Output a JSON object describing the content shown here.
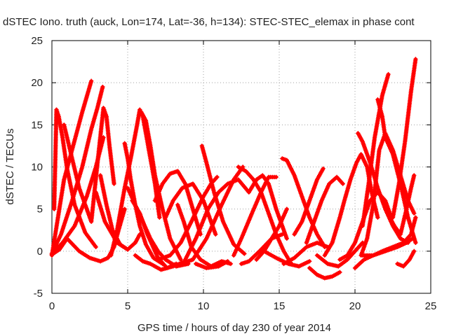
{
  "chart_data": {
    "type": "scatter",
    "title": "dSTEC Iono. truth (auck, Lon=174, Lat=-36, h=134): STEC-STEC_elemax in phase cont",
    "xlabel": "GPS time / hours of day 230 of year 2014",
    "ylabel": "dSTEC  / TECUs",
    "xlim": [
      0,
      25
    ],
    "ylim": [
      -5,
      25
    ],
    "xticks": [
      0,
      5,
      10,
      15,
      20,
      25
    ],
    "yticks": [
      -5,
      0,
      5,
      10,
      15,
      20,
      25
    ],
    "grid": true,
    "marker": "plus",
    "color": "#ff0000",
    "series": [
      {
        "x": [
          0.0,
          0.4,
          0.8,
          1.4,
          2.0,
          2.6
        ],
        "y": [
          -0.5,
          4.0,
          8.5,
          12.5,
          16.5,
          20.2
        ]
      },
      {
        "x": [
          0.15,
          0.3,
          0.45,
          0.7,
          1.0,
          1.5,
          2.2,
          2.9
        ],
        "y": [
          5.0,
          16.8,
          16.0,
          13.5,
          9.8,
          5.5,
          2.2,
          0.5
        ]
      },
      {
        "x": [
          0.0,
          0.6,
          1.3,
          2.0,
          2.6,
          3.0,
          3.35
        ],
        "y": [
          -0.3,
          2.0,
          5.8,
          10.0,
          14.5,
          17.0,
          19.5
        ]
      },
      {
        "x": [
          0.8,
          1.2,
          1.8,
          2.6,
          3.1,
          3.4,
          3.6,
          3.8,
          4.1
        ],
        "y": [
          15.0,
          12.0,
          7.5,
          3.5,
          12.0,
          17.0,
          16.0,
          12.5,
          8.0
        ]
      },
      {
        "x": [
          0.0,
          0.7,
          1.5,
          2.3,
          2.9,
          3.4
        ],
        "y": [
          -0.3,
          1.0,
          3.0,
          6.5,
          10.0,
          13.5
        ]
      },
      {
        "x": [
          0.0,
          0.5,
          1.0,
          1.8,
          2.5,
          3.2,
          3.7,
          4.1,
          4.4,
          4.8
        ],
        "y": [
          -0.4,
          0.2,
          1.5,
          0.0,
          -0.8,
          -1.2,
          -0.8,
          0.5,
          2.5,
          5.0
        ]
      },
      {
        "x": [
          2.9,
          3.5,
          4.3,
          5.0,
          5.5,
          5.8
        ],
        "y": [
          7.0,
          3.5,
          1.0,
          0.2,
          1.0,
          2.0
        ]
      },
      {
        "x": [
          3.2,
          3.6,
          4.0,
          4.5,
          5.0
        ],
        "y": [
          9.0,
          5.5,
          2.5,
          0.8,
          0.2
        ]
      },
      {
        "x": [
          4.8,
          5.0,
          5.2,
          5.5,
          5.8,
          6.2,
          6.7,
          7.3
        ],
        "y": [
          12.8,
          11.0,
          8.5,
          5.5,
          3.0,
          0.8,
          -0.8,
          -1.5
        ]
      },
      {
        "x": [
          3.9,
          4.3,
          4.8,
          5.2,
          5.6,
          5.8,
          6.0,
          6.2,
          6.5,
          6.8,
          7.1
        ],
        "y": [
          -0.5,
          2.5,
          7.5,
          11.0,
          14.8,
          16.8,
          16.0,
          14.0,
          11.0,
          8.0,
          4.0
        ]
      },
      {
        "x": [
          5.3,
          5.8,
          6.3,
          7.0,
          7.6,
          8.2
        ],
        "y": [
          6.0,
          4.5,
          2.0,
          -0.8,
          -2.0,
          -1.5
        ]
      },
      {
        "x": [
          5.9,
          6.2,
          6.5,
          6.8,
          7.3,
          7.8,
          8.5
        ],
        "y": [
          16.5,
          15.5,
          12.5,
          9.0,
          5.0,
          1.5,
          -1.0
        ]
      },
      {
        "x": [
          5.0,
          5.5,
          6.0,
          6.5,
          7.0,
          7.5,
          8.2,
          9.0
        ],
        "y": [
          7.5,
          5.5,
          3.5,
          1.5,
          0.0,
          -1.0,
          -1.8,
          -1.5
        ]
      },
      {
        "x": [
          5.5,
          6.0,
          6.5,
          7.2,
          8.0,
          8.8
        ],
        "y": [
          -0.5,
          -1.2,
          -1.5,
          -2.2,
          -1.8,
          -1.2
        ]
      },
      {
        "x": [
          6.8,
          7.3,
          7.8,
          8.3,
          8.8,
          9.3,
          9.8
        ],
        "y": [
          6.0,
          8.0,
          9.2,
          9.5,
          8.0,
          5.0,
          2.0
        ]
      },
      {
        "x": [
          7.5,
          8.0,
          8.6,
          9.3,
          10.0,
          10.8
        ],
        "y": [
          4.0,
          6.0,
          7.5,
          8.0,
          6.0,
          2.0
        ]
      },
      {
        "x": [
          7.0,
          7.8,
          8.5,
          9.2,
          10.0,
          10.5,
          10.9
        ],
        "y": [
          -1.0,
          -0.5,
          1.0,
          3.5,
          6.5,
          8.0,
          8.8
        ]
      },
      {
        "x": [
          8.3,
          8.7,
          9.2,
          9.8,
          10.5,
          11.2,
          11.8
        ],
        "y": [
          5.5,
          3.5,
          0.5,
          -1.0,
          -1.8,
          -1.2,
          -1.5
        ]
      },
      {
        "x": [
          9.9,
          10.2,
          10.7,
          11.3,
          12.0,
          12.7
        ],
        "y": [
          12.5,
          10.5,
          7.0,
          3.5,
          0.8,
          -0.3
        ]
      },
      {
        "x": [
          8.5,
          9.3,
          10.2,
          11.2,
          12.0,
          12.6
        ],
        "y": [
          -1.5,
          -1.0,
          1.5,
          5.5,
          8.5,
          10.0
        ]
      },
      {
        "x": [
          8.8,
          9.5,
          10.3,
          11.0,
          11.6,
          12.3,
          13.0
        ],
        "y": [
          -1.0,
          1.5,
          5.0,
          7.0,
          8.0,
          8.5,
          7.0
        ]
      },
      {
        "x": [
          9.5,
          10.2,
          11.0,
          11.6
        ],
        "y": [
          -1.5,
          -2.0,
          -1.8,
          -1.2
        ]
      },
      {
        "x": [
          12.0,
          12.5,
          13.2,
          13.8,
          14.3,
          14.8
        ],
        "y": [
          -0.5,
          1.5,
          4.5,
          7.0,
          8.8,
          8.8
        ]
      },
      {
        "x": [
          12.3,
          12.8,
          13.3,
          13.8,
          14.3,
          14.8,
          15.3,
          15.8
        ],
        "y": [
          10.0,
          9.5,
          8.5,
          7.0,
          4.5,
          2.0,
          0.0,
          -1.5
        ]
      },
      {
        "x": [
          12.5,
          13.0,
          13.7,
          14.5,
          15.2
        ],
        "y": [
          -1.5,
          -1.2,
          0.0,
          1.5,
          2.0
        ]
      },
      {
        "x": [
          13.5,
          14.0,
          14.5,
          15.0,
          15.5
        ],
        "y": [
          -1.0,
          0.0,
          1.5,
          3.0,
          5.0
        ]
      },
      {
        "x": [
          13.0,
          13.5,
          13.9,
          14.3,
          14.8,
          15.5
        ],
        "y": [
          7.0,
          8.5,
          9.0,
          8.0,
          5.0,
          1.5
        ]
      },
      {
        "x": [
          14.0,
          14.8,
          15.6,
          16.3,
          17.0
        ],
        "y": [
          0.0,
          -0.8,
          -1.5,
          -1.8,
          -1.2
        ]
      },
      {
        "x": [
          15.2,
          15.5,
          16.0,
          16.5,
          17.0,
          17.5,
          18.0
        ],
        "y": [
          11.0,
          10.8,
          9.0,
          6.5,
          4.0,
          2.0,
          0.5
        ]
      },
      {
        "x": [
          15.3,
          16.0,
          16.8,
          17.5,
          18.2
        ],
        "y": [
          -1.5,
          -0.8,
          0.5,
          1.0,
          0.5
        ]
      },
      {
        "x": [
          16.0,
          16.5,
          17.0,
          17.5,
          17.9
        ],
        "y": [
          2.0,
          3.5,
          6.0,
          8.5,
          9.8
        ]
      },
      {
        "x": [
          16.8,
          17.3,
          17.8,
          18.3,
          18.8,
          19.2
        ],
        "y": [
          1.0,
          3.5,
          6.0,
          8.0,
          8.8,
          8.0
        ]
      },
      {
        "x": [
          17.0,
          17.5,
          18.0,
          18.5,
          19.0
        ],
        "y": [
          -2.0,
          -2.8,
          -3.2,
          -3.0,
          -2.5
        ]
      },
      {
        "x": [
          17.5,
          18.2,
          18.9,
          19.5,
          20.0,
          20.5
        ],
        "y": [
          -0.5,
          -1.5,
          -1.8,
          -1.0,
          0.0,
          1.0
        ]
      },
      {
        "x": [
          18.0,
          18.5,
          19.0,
          19.3,
          19.7,
          20.1,
          20.4,
          20.8,
          21.1,
          21.5
        ],
        "y": [
          -0.5,
          1.0,
          4.0,
          6.0,
          8.5,
          10.5,
          11.5,
          10.0,
          7.0,
          4.0
        ]
      },
      {
        "x": [
          19.0,
          19.5,
          20.0,
          20.5,
          21.0,
          21.5,
          22.0,
          22.4
        ],
        "y": [
          -1.0,
          -0.5,
          1.0,
          3.5,
          6.0,
          7.0,
          6.0,
          4.0
        ]
      },
      {
        "x": [
          20.2,
          20.5,
          21.0,
          21.5,
          22.0,
          22.5,
          23.0,
          23.5
        ],
        "y": [
          14.0,
          13.0,
          10.5,
          7.5,
          5.0,
          3.0,
          1.5,
          1.0
        ]
      },
      {
        "x": [
          20.4,
          20.8,
          21.2,
          21.6,
          22.0,
          22.5,
          23.0,
          23.5,
          23.9
        ],
        "y": [
          -0.5,
          1.5,
          5.5,
          12.0,
          14.0,
          12.0,
          9.0,
          6.0,
          4.5
        ]
      },
      {
        "x": [
          20.5,
          20.9,
          21.3,
          21.8,
          22.2
        ],
        "y": [
          3.0,
          8.0,
          13.5,
          18.5,
          21.0
        ]
      },
      {
        "x": [
          21.5,
          21.8,
          22.0,
          22.5,
          23.0,
          23.5,
          24.0
        ],
        "y": [
          18.0,
          16.0,
          13.5,
          11.5,
          8.0,
          4.0,
          1.0
        ]
      },
      {
        "x": [
          20.0,
          20.6,
          21.2,
          21.8,
          22.5,
          23.2,
          23.7,
          24.0
        ],
        "y": [
          -2.0,
          -1.0,
          -0.5,
          0.0,
          0.5,
          1.0,
          2.0,
          4.0
        ]
      },
      {
        "x": [
          20.5,
          21.2,
          22.0,
          22.8,
          23.4,
          23.8
        ],
        "y": [
          -0.5,
          -0.5,
          0.0,
          0.5,
          1.0,
          1.5
        ]
      },
      {
        "x": [
          22.0,
          22.6,
          23.0,
          23.4,
          23.7,
          23.9
        ],
        "y": [
          5.0,
          3.0,
          2.0,
          5.0,
          7.5,
          9.0
        ]
      },
      {
        "x": [
          22.5,
          22.9,
          23.3,
          23.7,
          24.0
        ],
        "y": [
          4.0,
          8.0,
          13.0,
          19.0,
          22.8
        ]
      },
      {
        "x": [
          22.8,
          23.2,
          23.6,
          23.9
        ],
        "y": [
          -1.5,
          -1.8,
          -1.0,
          0.0
        ]
      }
    ]
  }
}
